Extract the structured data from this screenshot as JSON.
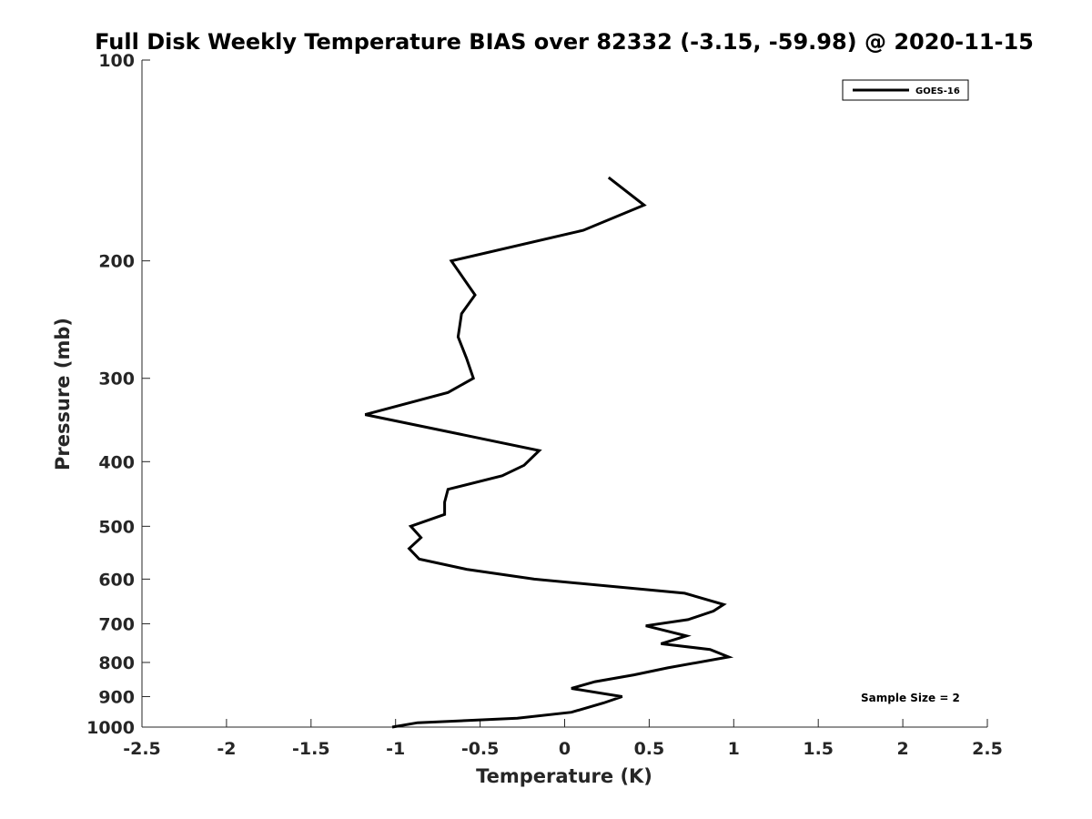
{
  "chart_data": {
    "type": "line",
    "title": "Full Disk Weekly Temperature BIAS over 82332 (-3.15, -59.98) @ 2020-11-15",
    "xlabel": "Temperature (K)",
    "ylabel": "Pressure (mb)",
    "xlim": [
      -2.5,
      2.5
    ],
    "ylim": [
      100,
      1000
    ],
    "yscale": "log",
    "y_reversed": true,
    "grid": false,
    "legend_position": "top-right",
    "xticks": [
      -2.5,
      -2,
      -1.5,
      -1,
      -0.5,
      0,
      0.5,
      1,
      1.5,
      2,
      2.5
    ],
    "xtick_labels": [
      "-2.5",
      "-2",
      "-1.5",
      "-1",
      "-0.5",
      "0",
      "0.5",
      "1",
      "1.5",
      "2",
      "2.5"
    ],
    "yticks": [
      100,
      200,
      300,
      400,
      500,
      600,
      700,
      800,
      900,
      1000
    ],
    "ytick_labels": [
      "100",
      "200",
      "300",
      "400",
      "500",
      "600",
      "700",
      "800",
      "900",
      "1000"
    ],
    "series": [
      {
        "name": "GOES-16",
        "color": "#000000",
        "points": [
          [
            0.26,
            150
          ],
          [
            0.47,
            165
          ],
          [
            0.11,
            180
          ],
          [
            -0.67,
            200
          ],
          [
            -0.53,
            225
          ],
          [
            -0.61,
            240
          ],
          [
            -0.63,
            260
          ],
          [
            -0.58,
            280
          ],
          [
            -0.54,
            300
          ],
          [
            -0.69,
            315
          ],
          [
            -1.18,
            340
          ],
          [
            -0.15,
            385
          ],
          [
            -0.24,
            405
          ],
          [
            -0.37,
            420
          ],
          [
            -0.69,
            440
          ],
          [
            -0.71,
            460
          ],
          [
            -0.71,
            480
          ],
          [
            -0.91,
            500
          ],
          [
            -0.85,
            520
          ],
          [
            -0.92,
            540
          ],
          [
            -0.86,
            560
          ],
          [
            -0.58,
            580
          ],
          [
            -0.18,
            600
          ],
          [
            0.71,
            630
          ],
          [
            0.94,
            655
          ],
          [
            0.88,
            670
          ],
          [
            0.73,
            690
          ],
          [
            0.48,
            705
          ],
          [
            0.72,
            730
          ],
          [
            0.57,
            750
          ],
          [
            0.86,
            765
          ],
          [
            0.97,
            785
          ],
          [
            0.61,
            815
          ],
          [
            0.41,
            835
          ],
          [
            0.18,
            855
          ],
          [
            0.04,
            875
          ],
          [
            0.34,
            900
          ],
          [
            0.23,
            920
          ],
          [
            0.04,
            950
          ],
          [
            -0.28,
            970
          ],
          [
            -0.87,
            985
          ],
          [
            -1.02,
            1000
          ]
        ]
      }
    ],
    "annotation": "Sample Size = 2"
  }
}
